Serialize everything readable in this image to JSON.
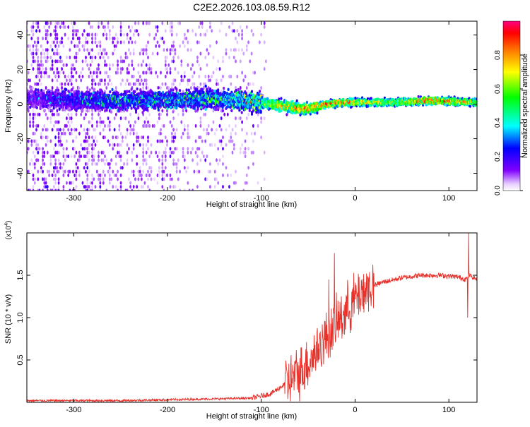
{
  "title": "C2E2.2026.103.08.59.R12",
  "chart_data": [
    {
      "type": "heatmap",
      "xlabel": "Height of straight line (km)",
      "ylabel": "Frequency (Hz)",
      "xlim": [
        -350,
        130
      ],
      "ylim": [
        -50,
        48
      ],
      "xticks": [
        -300,
        -200,
        -100,
        0,
        100
      ],
      "yticks": [
        -40,
        -20,
        0,
        20,
        40
      ],
      "colorbar": {
        "label": "Normalized spectral amplitude",
        "range": [
          0.0,
          1.0
        ],
        "ticks": [
          "0.0",
          "0.2",
          "0.4",
          "0.6",
          "0.8"
        ],
        "colors": [
          "#ffffff",
          "#d9b8ff",
          "#8000ff",
          "#0000ff",
          "#00ffff",
          "#00ff00",
          "#ffff00",
          "#ff8000",
          "#ff0000",
          "#ff0080"
        ]
      },
      "ridge": {
        "x": [
          -350,
          -250,
          -150,
          -100,
          -80,
          -50,
          -30,
          -10,
          10,
          40,
          80,
          130
        ],
        "center_freq_hz": [
          3,
          2,
          3,
          1,
          -1,
          -3,
          0,
          1,
          1,
          1,
          2,
          1
        ],
        "peak_amplitude": [
          0.2,
          0.4,
          0.45,
          0.6,
          0.8,
          0.85,
          0.9,
          0.85,
          0.75,
          0.65,
          0.95,
          0.7
        ]
      },
      "noise_extent_x": [
        -350,
        -95
      ]
    },
    {
      "type": "line",
      "xlabel": "Height of straight line (km)",
      "ylabel": "SNR (10 * v/v)",
      "y_multiplier": "(x10^4)",
      "xlim": [
        -350,
        130
      ],
      "ylim": [
        0,
        2.0
      ],
      "xticks": [
        -300,
        -200,
        -100,
        0,
        100
      ],
      "yticks": [
        "0.5",
        "1.0",
        "1.5"
      ],
      "series": [
        {
          "color": "#e8312a",
          "x": [
            -350,
            -300,
            -250,
            -200,
            -150,
            -110,
            -90,
            -70,
            -55,
            -45,
            -35,
            -25,
            -15,
            -5,
            5,
            15,
            30,
            50,
            70,
            90,
            110,
            118,
            122,
            130
          ],
          "y": [
            0.02,
            0.02,
            0.02,
            0.03,
            0.04,
            0.05,
            0.1,
            0.25,
            0.4,
            0.55,
            0.7,
            0.85,
            1.0,
            1.15,
            1.28,
            1.36,
            1.42,
            1.47,
            1.5,
            1.5,
            1.48,
            1.45,
            1.5,
            1.45
          ]
        }
      ],
      "spikes": [
        {
          "x": -22,
          "y": 1.76
        },
        {
          "x": -28,
          "y": 1.45
        },
        {
          "x": 121,
          "y": 2.0
        },
        {
          "x": 120,
          "y": 1.0
        }
      ]
    }
  ]
}
